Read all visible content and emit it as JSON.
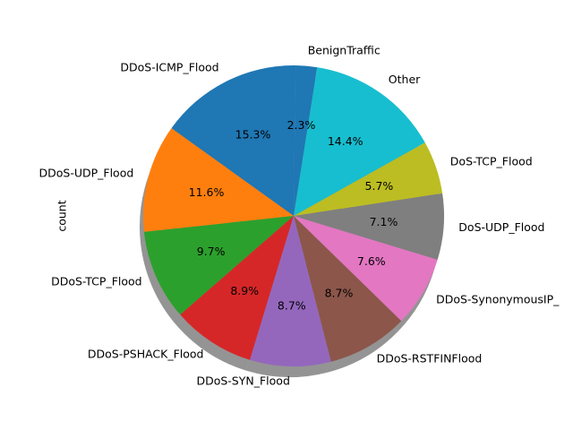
{
  "chart_data": {
    "type": "pie",
    "ylabel": "count",
    "shadow": true,
    "slices": [
      {
        "label": "BenignTraffic",
        "value": 2.3,
        "pct_label": "2.3%",
        "color": "#1f77b4"
      },
      {
        "label": "DDoS-ICMP_Flood",
        "value": 15.3,
        "pct_label": "15.3%",
        "color": "#1f77b4"
      },
      {
        "label": "DDoS-UDP_Flood",
        "value": 11.6,
        "pct_label": "11.6%",
        "color": "#ff7f0e"
      },
      {
        "label": "DDoS-TCP_Flood",
        "value": 9.7,
        "pct_label": "9.7%",
        "color": "#2ca02c"
      },
      {
        "label": "DDoS-PSHACK_Flood",
        "value": 8.9,
        "pct_label": "8.9%",
        "color": "#d62728"
      },
      {
        "label": "DDoS-SYN_Flood",
        "value": 8.7,
        "pct_label": "8.7%",
        "color": "#9467bd"
      },
      {
        "label": "DDoS-RSTFINFlood",
        "value": 8.7,
        "pct_label": "8.7%",
        "color": "#8c564b"
      },
      {
        "label": "DDoS-SynonymousIP_",
        "value": 7.6,
        "pct_label": "7.6%",
        "color": "#e377c2"
      },
      {
        "label": "DoS-UDP_Flood",
        "value": 7.1,
        "pct_label": "7.1%",
        "color": "#7f7f7f"
      },
      {
        "label": "DoS-TCP_Flood",
        "value": 5.7,
        "pct_label": "5.7%",
        "color": "#bcbd22"
      },
      {
        "label": "Other",
        "value": 14.4,
        "pct_label": "14.4%",
        "color": "#17becf"
      }
    ]
  }
}
